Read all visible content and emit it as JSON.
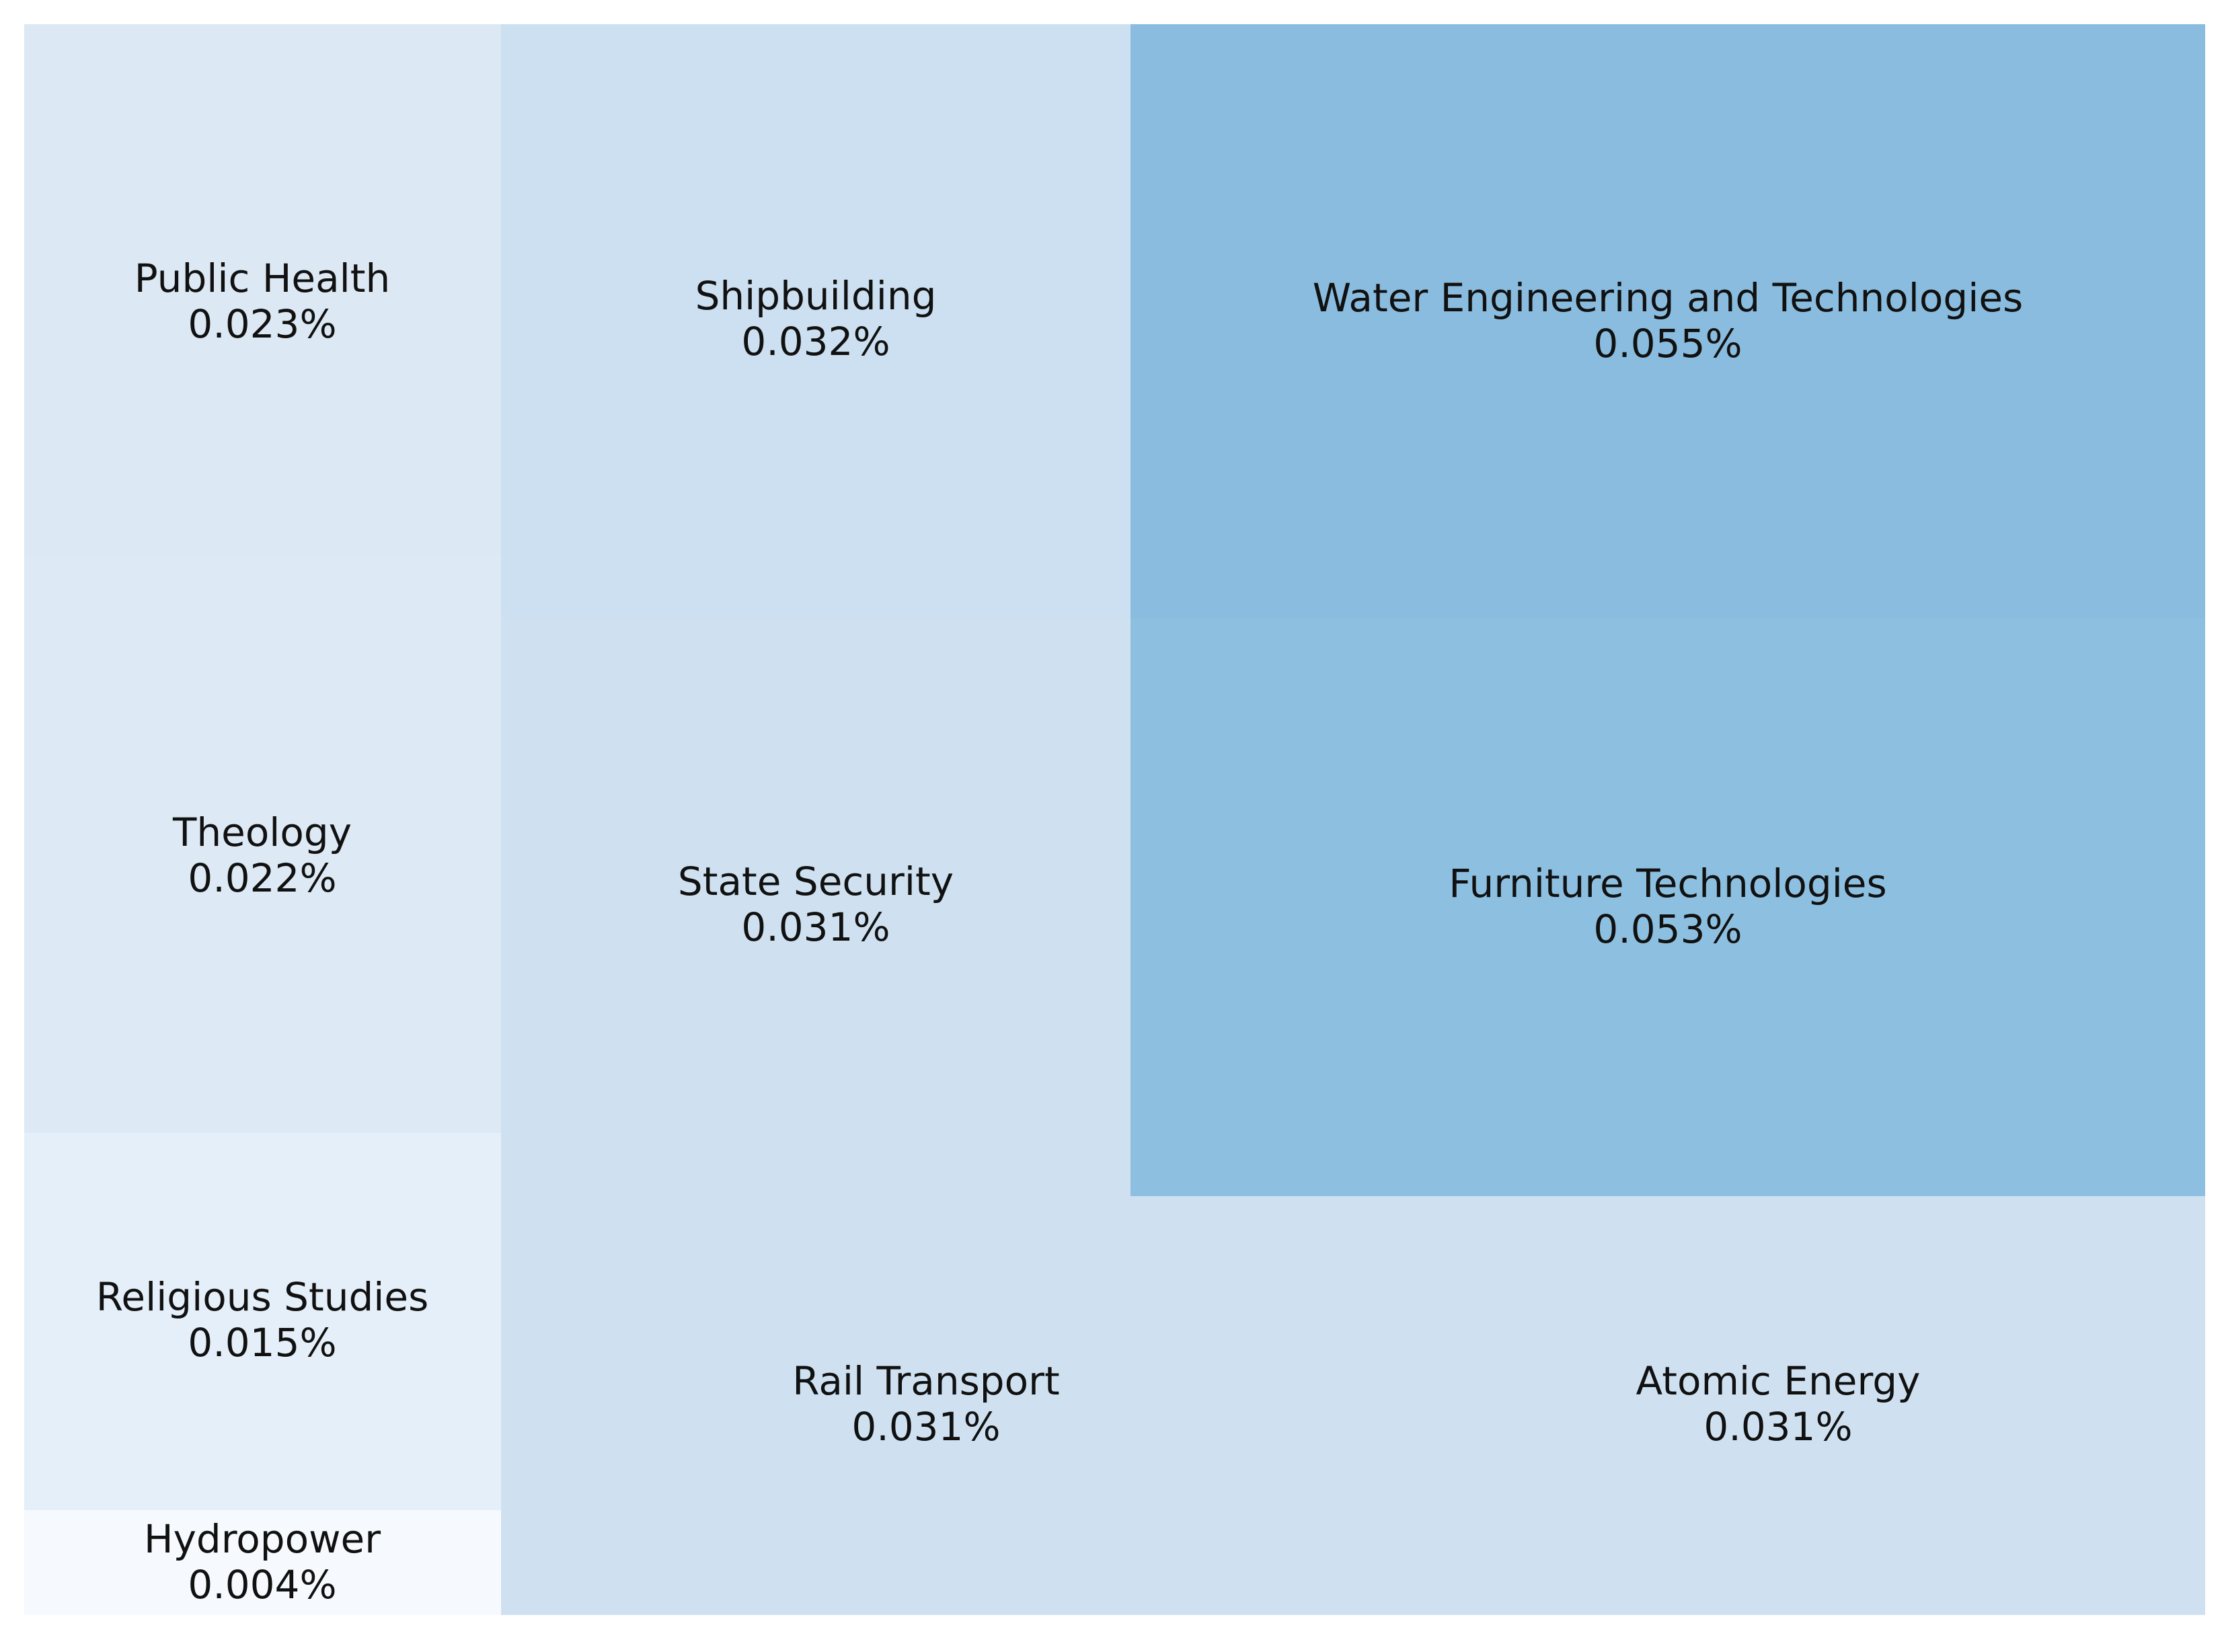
{
  "chart_data": {
    "type": "treemap",
    "title": "",
    "items": [
      {
        "label": "Public Health",
        "value": 0.023,
        "value_label": "0.023%",
        "color": "#dce8f4"
      },
      {
        "label": "Theology",
        "value": 0.022,
        "value_label": "0.022%",
        "color": "#dde9f5"
      },
      {
        "label": "Religious Studies",
        "value": 0.015,
        "value_label": "0.015%",
        "color": "#e5eff9"
      },
      {
        "label": "Hydropower",
        "value": 0.004,
        "value_label": "0.004%",
        "color": "#f6fafe"
      },
      {
        "label": "Shipbuilding",
        "value": 0.032,
        "value_label": "0.032%",
        "color": "#cce0f1"
      },
      {
        "label": "State Security",
        "value": 0.031,
        "value_label": "0.031%",
        "color": "#cfe1f1"
      },
      {
        "label": "Rail Transport",
        "value": 0.031,
        "value_label": "0.031%",
        "color": "#cfe1f1"
      },
      {
        "label": "Atomic Energy",
        "value": 0.031,
        "value_label": "0.031%",
        "color": "#cfe1f1"
      },
      {
        "label": "Water Engineering and Technologies",
        "value": 0.055,
        "value_label": "0.055%",
        "color": "#89bcde"
      },
      {
        "label": "Furniture Technologies",
        "value": 0.053,
        "value_label": "0.053%",
        "color": "#8dc0e0"
      }
    ]
  }
}
